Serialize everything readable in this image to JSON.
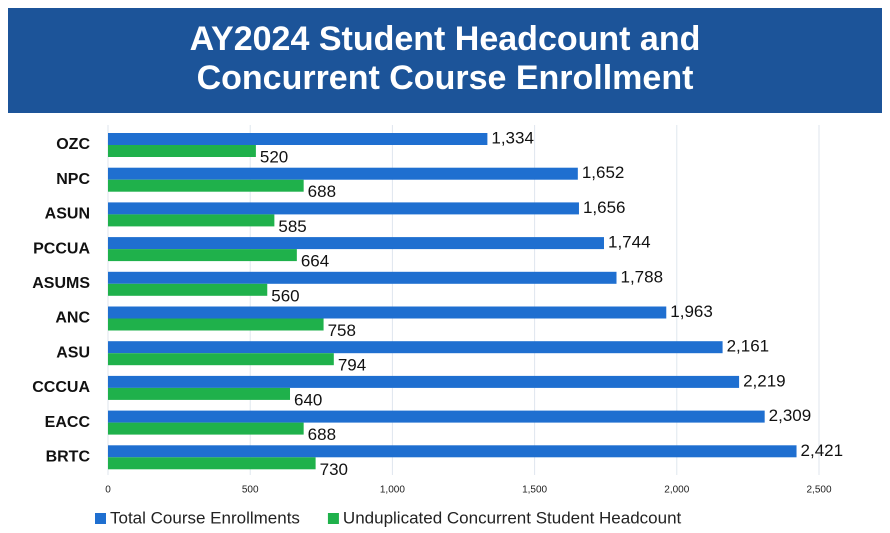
{
  "chart_data": {
    "type": "bar",
    "orientation": "horizontal",
    "title": [
      "AY2024 Student Headcount and",
      "Concurrent Course Enrollment"
    ],
    "categories": [
      "OZC",
      "NPC",
      "ASUN",
      "PCCUA",
      "ASUMS",
      "ANC",
      "ASU",
      "CCCUA",
      "EACC",
      "BRTC"
    ],
    "series": [
      {
        "name": "Total Course Enrollments",
        "color": "#1f6fd0",
        "values": [
          1334,
          1652,
          1656,
          1744,
          1788,
          1963,
          2161,
          2219,
          2309,
          2421
        ],
        "value_labels": [
          "1,334",
          "1,652",
          "1,656",
          "1,744",
          "1,788",
          "1,963",
          "2,161",
          "2,219",
          "2,309",
          "2,421"
        ]
      },
      {
        "name": "Unduplicated Concurrent Student Headcount",
        "color": "#1fb14b",
        "values": [
          520,
          688,
          585,
          664,
          560,
          758,
          794,
          640,
          688,
          730
        ],
        "value_labels": [
          "520",
          "688",
          "585",
          "664",
          "560",
          "758",
          "794",
          "640",
          "688",
          "730"
        ]
      }
    ],
    "xlim": [
      0,
      2700
    ],
    "xticks": [
      0,
      500,
      {
        "value": 1000,
        "label": "1,000"
      },
      {
        "value": 1500,
        "label": "1,500"
      },
      {
        "value": 2000,
        "label": "2,000"
      },
      {
        "value": 2500,
        "label": "2,500"
      }
    ],
    "grid": true,
    "legend": "bottom"
  }
}
